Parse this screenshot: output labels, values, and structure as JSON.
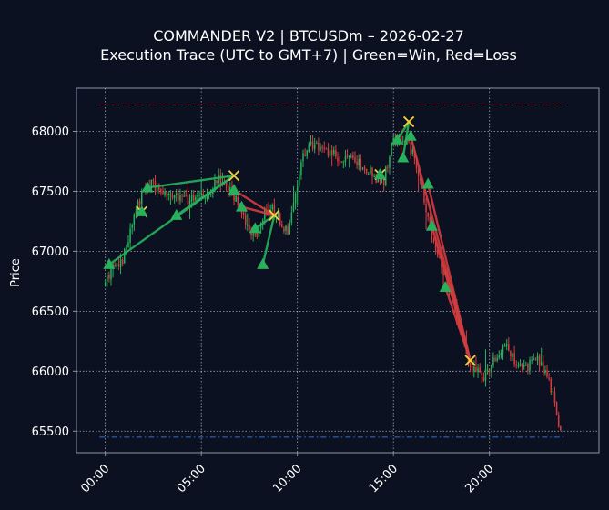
{
  "colors": {
    "background": "#0b1120",
    "axis": "#8a93a6",
    "grid": "#d6dbe4",
    "text": "#ffffff",
    "win": "#27b15c",
    "loss": "#d43d3f",
    "exit_marker": "#f2d03a",
    "upper_band": "#b5443f",
    "lower_band": "#3b6fc4"
  },
  "chart_data": {
    "type": "candlestick",
    "title": "COMMANDER V2 | BTCUSDm – 2026-02-27",
    "subtitle": "Execution Trace (UTC to GMT+7) | Green=Win, Red=Loss",
    "xlabel": "",
    "ylabel": "Price",
    "x_unit": "hour",
    "xlim": [
      -1.5,
      25.7
    ],
    "ylim": [
      65320,
      68360
    ],
    "x_ticks": [
      {
        "value": 0,
        "label": "00:00"
      },
      {
        "value": 5,
        "label": "05:00"
      },
      {
        "value": 10,
        "label": "10:00"
      },
      {
        "value": 15,
        "label": "15:00"
      },
      {
        "value": 20,
        "label": "20:00"
      }
    ],
    "y_ticks": [
      65500,
      66000,
      66500,
      67000,
      67500,
      68000
    ],
    "grid": true,
    "reference_lines": [
      {
        "y": 68220,
        "color": "#b5443f",
        "style": "dashdot"
      },
      {
        "y": 65450,
        "color": "#3b6fc4",
        "style": "dashdot"
      }
    ],
    "candle_path": [
      [
        0.0,
        66700
      ],
      [
        0.5,
        66860
      ],
      [
        1.0,
        66940
      ],
      [
        1.5,
        67230
      ],
      [
        2.0,
        67480
      ],
      [
        2.5,
        67560
      ],
      [
        3.0,
        67520
      ],
      [
        3.5,
        67490
      ],
      [
        4.0,
        67460
      ],
      [
        4.5,
        67420
      ],
      [
        5.0,
        67500
      ],
      [
        5.5,
        67480
      ],
      [
        6.0,
        67600
      ],
      [
        6.4,
        67560
      ],
      [
        6.8,
        67450
      ],
      [
        7.2,
        67350
      ],
      [
        7.6,
        67180
      ],
      [
        8.0,
        67100
      ],
      [
        8.4,
        67300
      ],
      [
        8.8,
        67350
      ],
      [
        9.2,
        67250
      ],
      [
        9.6,
        67150
      ],
      [
        10.0,
        67500
      ],
      [
        10.4,
        67800
      ],
      [
        10.8,
        67900
      ],
      [
        11.2,
        67850
      ],
      [
        11.8,
        67820
      ],
      [
        12.4,
        67780
      ],
      [
        13.0,
        67760
      ],
      [
        13.6,
        67700
      ],
      [
        14.2,
        67620
      ],
      [
        14.6,
        67580
      ],
      [
        15.0,
        67900
      ],
      [
        15.4,
        67960
      ],
      [
        15.8,
        67900
      ],
      [
        16.2,
        67800
      ],
      [
        16.6,
        67500
      ],
      [
        17.0,
        67200
      ],
      [
        17.4,
        66950
      ],
      [
        17.8,
        66800
      ],
      [
        18.2,
        66600
      ],
      [
        18.6,
        66300
      ],
      [
        19.0,
        66100
      ],
      [
        19.4,
        66000
      ],
      [
        19.8,
        65950
      ],
      [
        20.2,
        66050
      ],
      [
        20.6,
        66150
      ],
      [
        21.0,
        66200
      ],
      [
        21.4,
        66100
      ],
      [
        21.8,
        66000
      ],
      [
        22.2,
        66050
      ],
      [
        22.6,
        66100
      ],
      [
        23.0,
        66000
      ],
      [
        23.4,
        65800
      ],
      [
        23.7,
        65520
      ]
    ],
    "trades": [
      {
        "entry": [
          0.2,
          66890
        ],
        "exit": [
          6.7,
          67630
        ],
        "result": "win"
      },
      {
        "entry": [
          2.2,
          67530
        ],
        "exit": [
          6.7,
          67630
        ],
        "result": "win"
      },
      {
        "entry": [
          3.7,
          67300
        ],
        "exit": [
          6.7,
          67630
        ],
        "result": "win"
      },
      {
        "entry": [
          1.9,
          67330
        ],
        "exit": [
          1.9,
          67330
        ],
        "result": "win"
      },
      {
        "entry": [
          6.7,
          67510
        ],
        "exit": [
          8.8,
          67300
        ],
        "result": "loss"
      },
      {
        "entry": [
          7.1,
          67370
        ],
        "exit": [
          8.8,
          67300
        ],
        "result": "loss"
      },
      {
        "entry": [
          7.8,
          67190
        ],
        "exit": [
          8.8,
          67300
        ],
        "result": "win"
      },
      {
        "entry": [
          8.2,
          66890
        ],
        "exit": [
          8.8,
          67300
        ],
        "result": "win"
      },
      {
        "entry": [
          14.3,
          67640
        ],
        "exit": [
          14.3,
          67640
        ],
        "result": "loss"
      },
      {
        "entry": [
          15.2,
          67930
        ],
        "exit": [
          15.8,
          68080
        ],
        "result": "win"
      },
      {
        "entry": [
          15.5,
          67780
        ],
        "exit": [
          15.8,
          68080
        ],
        "result": "win"
      },
      {
        "entry": [
          15.9,
          67960
        ],
        "exit": [
          19.0,
          66090
        ],
        "result": "loss"
      },
      {
        "entry": [
          16.8,
          67560
        ],
        "exit": [
          19.0,
          66090
        ],
        "result": "loss"
      },
      {
        "entry": [
          17.0,
          67210
        ],
        "exit": [
          19.0,
          66090
        ],
        "result": "loss"
      },
      {
        "entry": [
          17.7,
          66700
        ],
        "exit": [
          19.0,
          66090
        ],
        "result": "loss"
      }
    ]
  }
}
